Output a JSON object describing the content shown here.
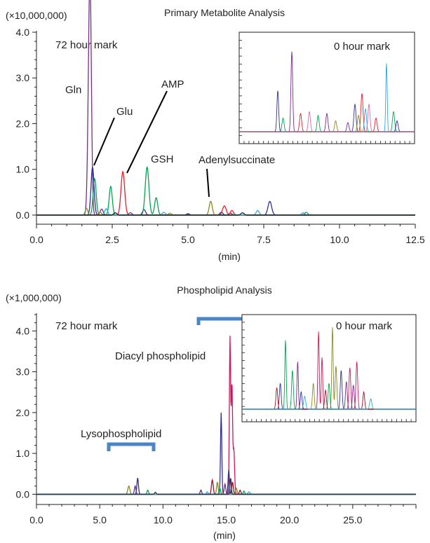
{
  "chart_data": [
    {
      "type": "line",
      "title": "Primary Metabolite Analysis",
      "y_multiplier": "(×10,000,000)",
      "xlabel": "(min)",
      "ylabel": "",
      "xlim": [
        0,
        12.5
      ],
      "ylim": [
        -0.2,
        4.0
      ],
      "x_ticks": [
        "0.0",
        "2.5",
        "5.0",
        "7.5",
        "10.0",
        "12.5"
      ],
      "y_ticks": [
        "0.0",
        "1.0",
        "2.0",
        "3.0",
        "4.0"
      ],
      "time_mark": "72 hour mark",
      "inset": {
        "time_mark": "0 hour mark"
      },
      "peak_labels": [
        {
          "text": "Gln",
          "x": 1.75,
          "y": 3.6
        },
        {
          "text": "Glu",
          "x": 1.9,
          "y": 1.05
        },
        {
          "text": "AMP",
          "x": 2.85,
          "y": 0.95
        },
        {
          "text": "GSH",
          "x": 3.65,
          "y": 1.05
        },
        {
          "text": "Adenylsuccinate",
          "x": 5.75,
          "y": 0.3
        }
      ],
      "series": [
        {
          "color": "#7b2a8f",
          "peaks": [
            [
              1.75,
              3.6,
              0.05
            ],
            [
              1.78,
              1.95,
              0.04
            ],
            [
              2.15,
              0.13,
              0.05
            ],
            [
              3.1,
              0.05,
              0.05
            ],
            [
              6.4,
              0.04,
              0.05
            ]
          ]
        },
        {
          "color": "#2e3192",
          "peaks": [
            [
              1.85,
              1.05,
              0.05
            ],
            [
              3.55,
              0.12,
              0.05
            ],
            [
              7.7,
              0.3,
              0.06
            ],
            [
              6.1,
              0.06,
              0.05
            ],
            [
              5.0,
              0.03,
              0.05
            ]
          ]
        },
        {
          "color": "#00a651",
          "peaks": [
            [
              1.92,
              0.8,
              0.05
            ],
            [
              2.45,
              0.63,
              0.05
            ],
            [
              3.65,
              1.05,
              0.06
            ],
            [
              3.95,
              0.38,
              0.05
            ],
            [
              8.9,
              0.06,
              0.05
            ]
          ]
        },
        {
          "color": "#ed1c24",
          "peaks": [
            [
              2.85,
              0.95,
              0.06
            ],
            [
              6.2,
              0.2,
              0.06
            ],
            [
              6.45,
              0.1,
              0.05
            ]
          ]
        },
        {
          "color": "#8a8a22",
          "peaks": [
            [
              1.65,
              0.15,
              0.04
            ],
            [
              5.75,
              0.3,
              0.05
            ],
            [
              2.1,
              0.06,
              0.05
            ],
            [
              4.4,
              0.04,
              0.05
            ]
          ]
        },
        {
          "color": "#29abe2",
          "peaks": [
            [
              2.3,
              0.14,
              0.05
            ],
            [
              4.2,
              0.06,
              0.05
            ],
            [
              7.3,
              0.1,
              0.05
            ],
            [
              8.8,
              0.05,
              0.05
            ]
          ]
        },
        {
          "color": "#222222",
          "peaks": [
            [
              2.6,
              0.05,
              0.05
            ],
            [
              6.8,
              0.05,
              0.05
            ]
          ]
        }
      ],
      "inset_series": [
        {
          "color": "#7b2a8f",
          "peaks": [
            [
              0.3,
              0.88,
              0.005
            ],
            [
              0.5,
              0.2,
              0.006
            ],
            [
              0.62,
              0.1,
              0.006
            ]
          ]
        },
        {
          "color": "#00a651",
          "peaks": [
            [
              0.25,
              0.15,
              0.006
            ],
            [
              0.45,
              0.18,
              0.006
            ],
            [
              0.88,
              0.22,
              0.006
            ]
          ]
        },
        {
          "color": "#2e3192",
          "peaks": [
            [
              0.22,
              0.45,
              0.005
            ],
            [
              0.66,
              0.3,
              0.006
            ],
            [
              0.9,
              0.12,
              0.006
            ]
          ]
        },
        {
          "color": "#ed1c24",
          "peaks": [
            [
              0.35,
              0.2,
              0.006
            ],
            [
              0.7,
              0.42,
              0.006
            ],
            [
              0.78,
              0.15,
              0.006
            ]
          ]
        },
        {
          "color": "#29abe2",
          "peaks": [
            [
              0.84,
              0.75,
              0.004
            ],
            [
              0.72,
              0.25,
              0.006
            ]
          ]
        },
        {
          "color": "#8a8a22",
          "peaks": [
            [
              0.55,
              0.12,
              0.006
            ],
            [
              0.68,
              0.18,
              0.006
            ]
          ]
        },
        {
          "color": "#d36aa8",
          "peaks": [
            [
              0.4,
              0.22,
              0.006
            ],
            [
              0.74,
              0.3,
              0.006
            ]
          ]
        }
      ]
    },
    {
      "type": "line",
      "title": "Phospholipid Analysis",
      "y_multiplier": "(×1,000,000)",
      "xlabel": "(min)",
      "ylabel": "",
      "xlim": [
        0,
        30
      ],
      "ylim": [
        -0.25,
        4.4
      ],
      "x_ticks": [
        "0.0",
        "5.0",
        "10.0",
        "15.0",
        "20.0",
        "25.0"
      ],
      "y_ticks": [
        "0.0",
        "1.0",
        "2.0",
        "3.0",
        "4.0"
      ],
      "time_mark": "72 hour mark",
      "inset": {
        "time_mark": "0 hour mark"
      },
      "group_labels": [
        {
          "text": "Lysophospholipid",
          "x_start": 5.8,
          "x_end": 9.4
        },
        {
          "text": "Diacyl phospholipid",
          "x_start": 12.8,
          "x_end": 17.1
        }
      ],
      "series": [
        {
          "color": "#d4145a",
          "peaks": [
            [
              15.3,
              3.85,
              0.05
            ],
            [
              15.45,
              2.7,
              0.05
            ],
            [
              15.6,
              1.1,
              0.06
            ]
          ]
        },
        {
          "color": "#2e3192",
          "peaks": [
            [
              14.6,
              2.0,
              0.05
            ],
            [
              15.2,
              0.6,
              0.05
            ],
            [
              8.0,
              0.4,
              0.06
            ],
            [
              13.0,
              0.1,
              0.06
            ]
          ]
        },
        {
          "color": "#a30e2b",
          "peaks": [
            [
              13.9,
              0.35,
              0.07
            ],
            [
              15.5,
              0.3,
              0.06
            ],
            [
              16.1,
              0.1,
              0.06
            ]
          ]
        },
        {
          "color": "#8a8a22",
          "peaks": [
            [
              7.3,
              0.2,
              0.08
            ],
            [
              14.3,
              0.3,
              0.06
            ],
            [
              15.8,
              0.15,
              0.06
            ]
          ]
        },
        {
          "color": "#00a651",
          "peaks": [
            [
              8.8,
              0.1,
              0.06
            ],
            [
              14.5,
              0.15,
              0.06
            ],
            [
              16.4,
              0.08,
              0.06
            ]
          ]
        },
        {
          "color": "#7b2a8f",
          "peaks": [
            [
              7.8,
              0.2,
              0.06
            ],
            [
              14.9,
              0.25,
              0.06
            ]
          ]
        },
        {
          "color": "#29abe2",
          "peaks": [
            [
              16.8,
              0.06,
              0.08
            ],
            [
              13.5,
              0.06,
              0.06
            ]
          ]
        },
        {
          "color": "#333333",
          "peaks": [
            [
              15.35,
              0.4,
              0.05
            ],
            [
              9.4,
              0.05,
              0.06
            ]
          ]
        }
      ],
      "inset_series": [
        {
          "color": "#d4145a",
          "peaks": [
            [
              0.44,
              0.9,
              0.004
            ],
            [
              0.46,
              0.6,
              0.004
            ],
            [
              0.62,
              0.48,
              0.005
            ],
            [
              0.66,
              0.55,
              0.005
            ]
          ]
        },
        {
          "color": "#8a8a22",
          "peaks": [
            [
              0.52,
              0.95,
              0.004
            ],
            [
              0.54,
              0.5,
              0.005
            ],
            [
              0.41,
              0.3,
              0.005
            ]
          ]
        },
        {
          "color": "#00a651",
          "peaks": [
            [
              0.25,
              0.8,
              0.004
            ],
            [
              0.29,
              0.45,
              0.005
            ],
            [
              0.5,
              0.3,
              0.005
            ]
          ]
        },
        {
          "color": "#2e3192",
          "peaks": [
            [
              0.22,
              0.3,
              0.005
            ],
            [
              0.34,
              0.2,
              0.005
            ],
            [
              0.57,
              0.45,
              0.005
            ]
          ]
        },
        {
          "color": "#7b2a8f",
          "peaks": [
            [
              0.32,
              0.55,
              0.004
            ],
            [
              0.6,
              0.32,
              0.005
            ],
            [
              0.64,
              0.28,
              0.005
            ]
          ]
        },
        {
          "color": "#a30e2b",
          "peaks": [
            [
              0.2,
              0.25,
              0.005
            ],
            [
              0.48,
              0.22,
              0.005
            ],
            [
              0.7,
              0.2,
              0.005
            ]
          ]
        },
        {
          "color": "#29abe2",
          "peaks": [
            [
              0.36,
              0.15,
              0.006
            ],
            [
              0.74,
              0.12,
              0.006
            ]
          ]
        }
      ]
    }
  ]
}
